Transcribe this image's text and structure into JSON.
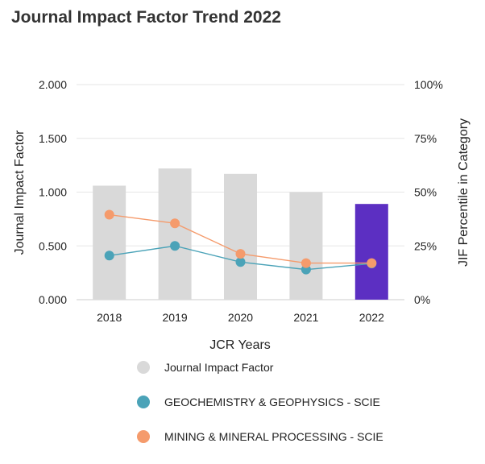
{
  "chart_data": {
    "type": "bar",
    "title": "Journal Impact Factor Trend 2022",
    "xlabel": "JCR Years",
    "ylabel": "Journal Impact Factor",
    "y2label": "JIF Percentile in Category",
    "categories": [
      "2018",
      "2019",
      "2020",
      "2021",
      "2022"
    ],
    "ylim": [
      0,
      2
    ],
    "y_ticks": [
      "0.000",
      "0.500",
      "1.000",
      "1.500",
      "2.000"
    ],
    "y2lim": [
      0,
      100
    ],
    "y2_ticks": [
      "0%",
      "25%",
      "50%",
      "75%",
      "100%"
    ],
    "grid": true,
    "legend_position": "bottom",
    "series": [
      {
        "name": "Journal Impact Factor",
        "type": "bar",
        "axis": "left",
        "values": [
          1.06,
          1.22,
          1.17,
          1.0,
          0.89
        ],
        "color": "#d9d9d9",
        "highlight_color": "#5c2fc2",
        "highlight_index": 4
      },
      {
        "name": "GEOCHEMISTRY & GEOPHYSICS - SCIE",
        "type": "line",
        "axis": "right",
        "values": [
          20.5,
          25,
          17.5,
          14,
          16.8
        ],
        "color": "#4ba3b8"
      },
      {
        "name": "MINING & MINERAL PROCESSING - SCIE",
        "type": "line",
        "axis": "right",
        "values": [
          39.5,
          35.5,
          21.3,
          17,
          17
        ],
        "color": "#f59b6c"
      }
    ]
  },
  "legend": {
    "items": [
      {
        "label": "Journal Impact Factor",
        "color": "#d9d9d9"
      },
      {
        "label": "GEOCHEMISTRY & GEOPHYSICS - SCIE",
        "color": "#4ba3b8"
      },
      {
        "label": "MINING & MINERAL PROCESSING - SCIE",
        "color": "#f59b6c"
      }
    ]
  }
}
